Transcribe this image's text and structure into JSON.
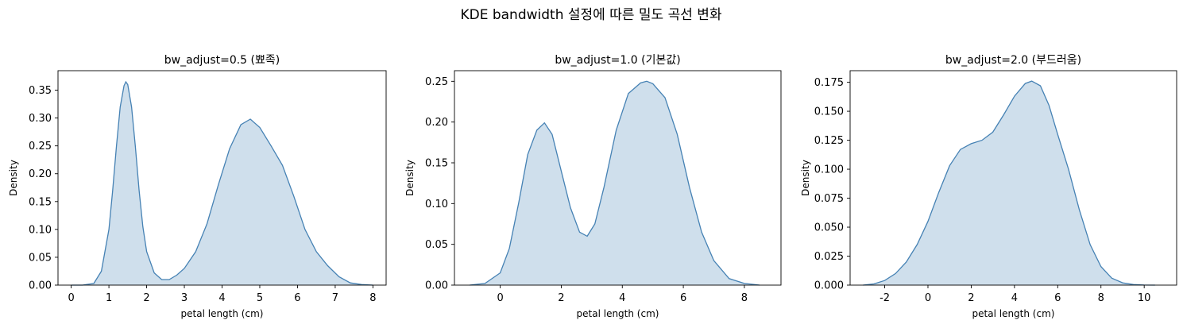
{
  "figure": {
    "title": "KDE bandwidth 설정에 따른 밀도 곡선 변화",
    "line_color": "#4682b4",
    "fill_color": "#cfdfec"
  },
  "chart_data": [
    {
      "type": "area",
      "title": "bw_adjust=0.5 (뾰족)",
      "xlabel": "petal length (cm)",
      "ylabel": "Density",
      "xlim": [
        -0.35,
        8.35
      ],
      "ylim": [
        0,
        0.385
      ],
      "xticks": [
        0,
        1,
        2,
        3,
        4,
        5,
        6,
        7,
        8
      ],
      "xtick_labels": [
        "0",
        "1",
        "2",
        "3",
        "4",
        "5",
        "6",
        "7",
        "8"
      ],
      "yticks": [
        0,
        0.05,
        0.1,
        0.15,
        0.2,
        0.25,
        0.3,
        0.35
      ],
      "ytick_labels": [
        "0.00",
        "0.05",
        "0.10",
        "0.15",
        "0.20",
        "0.25",
        "0.30",
        "0.35"
      ],
      "x": [
        0.0,
        0.3,
        0.6,
        0.8,
        1.0,
        1.1,
        1.2,
        1.3,
        1.4,
        1.45,
        1.5,
        1.6,
        1.7,
        1.8,
        1.9,
        2.0,
        2.2,
        2.4,
        2.6,
        2.8,
        3.0,
        3.3,
        3.6,
        3.9,
        4.2,
        4.5,
        4.75,
        5.0,
        5.3,
        5.6,
        5.9,
        6.2,
        6.5,
        6.8,
        7.1,
        7.4,
        7.7,
        8.0
      ],
      "y": [
        0.0,
        0.0,
        0.003,
        0.025,
        0.1,
        0.17,
        0.25,
        0.32,
        0.358,
        0.365,
        0.36,
        0.32,
        0.25,
        0.17,
        0.105,
        0.06,
        0.022,
        0.01,
        0.01,
        0.018,
        0.03,
        0.06,
        0.11,
        0.18,
        0.245,
        0.288,
        0.298,
        0.283,
        0.25,
        0.215,
        0.16,
        0.1,
        0.06,
        0.035,
        0.015,
        0.004,
        0.001,
        0.0
      ]
    },
    {
      "type": "area",
      "title": "bw_adjust=1.0 (기본값)",
      "xlabel": "petal length (cm)",
      "ylabel": "Density",
      "xlim": [
        -1.5,
        9.2
      ],
      "ylim": [
        0,
        0.263
      ],
      "xticks": [
        0,
        2,
        4,
        6,
        8
      ],
      "xtick_labels": [
        "0",
        "2",
        "4",
        "6",
        "8"
      ],
      "yticks": [
        0,
        0.05,
        0.1,
        0.15,
        0.2,
        0.25
      ],
      "ytick_labels": [
        "0.00",
        "0.05",
        "0.10",
        "0.15",
        "0.20",
        "0.25"
      ],
      "x": [
        -1.0,
        -0.5,
        0.0,
        0.3,
        0.6,
        0.9,
        1.2,
        1.45,
        1.7,
        2.0,
        2.3,
        2.6,
        2.85,
        3.1,
        3.4,
        3.8,
        4.2,
        4.6,
        4.8,
        5.0,
        5.4,
        5.8,
        6.2,
        6.6,
        7.0,
        7.5,
        8.0,
        8.5
      ],
      "y": [
        0.0,
        0.002,
        0.015,
        0.045,
        0.1,
        0.16,
        0.19,
        0.199,
        0.185,
        0.14,
        0.095,
        0.065,
        0.06,
        0.075,
        0.12,
        0.19,
        0.235,
        0.248,
        0.25,
        0.247,
        0.23,
        0.185,
        0.12,
        0.065,
        0.03,
        0.008,
        0.002,
        0.0
      ]
    },
    {
      "type": "area",
      "title": "bw_adjust=2.0 (부드러움)",
      "xlabel": "petal length (cm)",
      "ylabel": "Density",
      "xlim": [
        -3.6,
        11.5
      ],
      "ylim": [
        0,
        0.185
      ],
      "xticks": [
        -2,
        0,
        2,
        4,
        6,
        8,
        10
      ],
      "xtick_labels": [
        "-2",
        "0",
        "2",
        "4",
        "6",
        "8",
        "10"
      ],
      "yticks": [
        0,
        0.025,
        0.05,
        0.075,
        0.1,
        0.125,
        0.15,
        0.175
      ],
      "ytick_labels": [
        "0.000",
        "0.025",
        "0.050",
        "0.075",
        "0.100",
        "0.125",
        "0.150",
        "0.175"
      ],
      "x": [
        -3.0,
        -2.5,
        -2.0,
        -1.5,
        -1.0,
        -0.5,
        0.0,
        0.5,
        1.0,
        1.5,
        2.0,
        2.5,
        3.0,
        3.5,
        4.0,
        4.5,
        4.8,
        5.2,
        5.6,
        6.0,
        6.5,
        7.0,
        7.5,
        8.0,
        8.5,
        9.0,
        9.5,
        10.0,
        10.5
      ],
      "y": [
        0.0,
        0.001,
        0.004,
        0.01,
        0.02,
        0.035,
        0.055,
        0.08,
        0.103,
        0.117,
        0.122,
        0.125,
        0.132,
        0.147,
        0.163,
        0.174,
        0.176,
        0.172,
        0.155,
        0.13,
        0.1,
        0.065,
        0.035,
        0.016,
        0.006,
        0.002,
        0.0005,
        0.0001,
        0.0
      ]
    }
  ]
}
